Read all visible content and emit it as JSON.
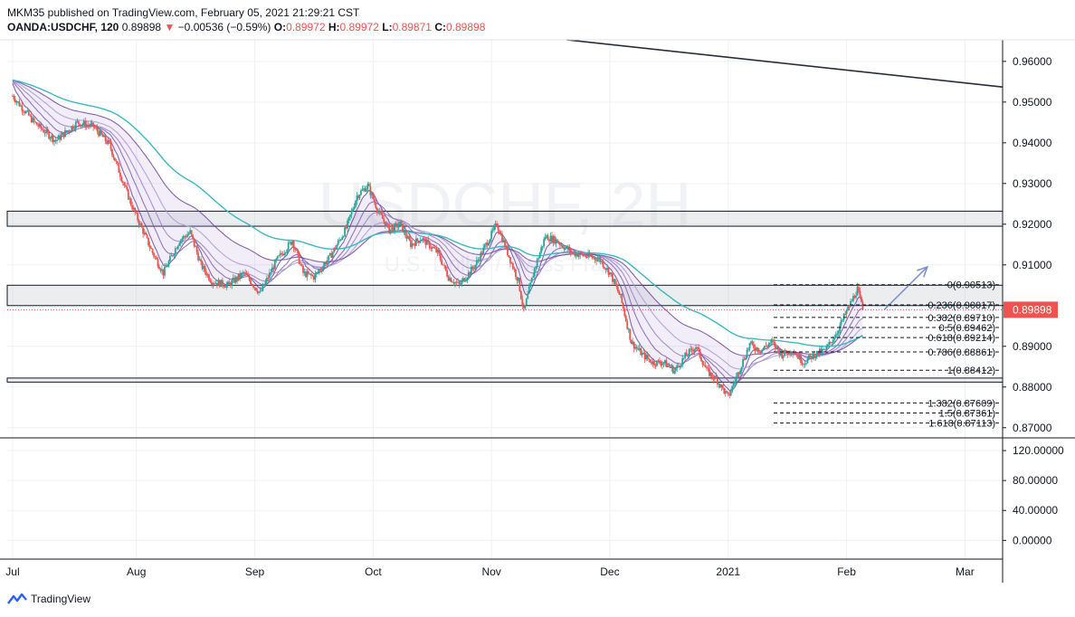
{
  "header": {
    "line1": "MKM35 published on TradingView.com, February 05, 2021 21:29:21 CST",
    "symbol": "OANDA:USDCHF, 120",
    "last": "0.89898",
    "arrow": "▼",
    "change": "−0.00536 (−0.59%)",
    "o_label": "O:",
    "o": "0.89972",
    "h_label": "H:",
    "h": "0.89972",
    "l_label": "L:",
    "l": "0.89871",
    "c_label": "C:",
    "c": "0.89898"
  },
  "watermark": "USDCHF, 2H",
  "watermark_sub": "U.S. Dollar / Swiss Franc",
  "footer": {
    "brand": "TradingView",
    "icon": "tradingview-logo-icon"
  },
  "colors": {
    "up": "#26a69a",
    "down": "#ef5350",
    "ema_slow": "#3cb8c0",
    "ema_fast": "#6a3d9a",
    "price_tag": "#ef5350",
    "arrow": "#7b93d6"
  },
  "chart_data": {
    "type": "candlestick",
    "x_labels": [
      "Jul",
      "Aug",
      "Sep",
      "Oct",
      "Nov",
      "Dec",
      "2021",
      "Feb",
      "Mar"
    ],
    "y_ticks": [
      "0.96000",
      "0.95000",
      "0.94000",
      "0.93000",
      "0.92000",
      "0.91000",
      "0.90000",
      "0.89000",
      "0.88000",
      "0.87000"
    ],
    "ylim": [
      0.8675,
      0.9653
    ],
    "price_label": "0.89898",
    "price_points": [
      [
        0,
        0.9515
      ],
      [
        4,
        0.945
      ],
      [
        8,
        0.9405
      ],
      [
        12,
        0.945
      ],
      [
        15,
        0.944
      ],
      [
        18,
        0.9395
      ],
      [
        22,
        0.925
      ],
      [
        26,
        0.913
      ],
      [
        28,
        0.908
      ],
      [
        31,
        0.916
      ],
      [
        33,
        0.918
      ],
      [
        35,
        0.91
      ],
      [
        37,
        0.906
      ],
      [
        40,
        0.905
      ],
      [
        43,
        0.908
      ],
      [
        46,
        0.903
      ],
      [
        49,
        0.911
      ],
      [
        52,
        0.916
      ],
      [
        54,
        0.908
      ],
      [
        56,
        0.907
      ],
      [
        59,
        0.912
      ],
      [
        62,
        0.919
      ],
      [
        64,
        0.927
      ],
      [
        66,
        0.9295
      ],
      [
        68,
        0.923
      ],
      [
        70,
        0.9185
      ],
      [
        72,
        0.92
      ],
      [
        74,
        0.915
      ],
      [
        76,
        0.9165
      ],
      [
        79,
        0.913
      ],
      [
        81,
        0.907
      ],
      [
        83,
        0.905
      ],
      [
        86,
        0.91
      ],
      [
        88,
        0.915
      ],
      [
        90,
        0.92
      ],
      [
        92,
        0.913
      ],
      [
        94,
        0.906
      ],
      [
        95,
        0.8985
      ],
      [
        97,
        0.909
      ],
      [
        99,
        0.917
      ],
      [
        101,
        0.916
      ],
      [
        104,
        0.913
      ],
      [
        107,
        0.912
      ],
      [
        109,
        0.9115
      ],
      [
        111,
        0.908
      ],
      [
        113,
        0.902
      ],
      [
        115,
        0.891
      ],
      [
        117,
        0.888
      ],
      [
        119,
        0.886
      ],
      [
        121,
        0.886
      ],
      [
        123,
        0.884
      ],
      [
        125,
        0.8875
      ],
      [
        127,
        0.89
      ],
      [
        129,
        0.884
      ],
      [
        131,
        0.8815
      ],
      [
        133,
        0.8775
      ],
      [
        135,
        0.884
      ],
      [
        137,
        0.8905
      ],
      [
        139,
        0.889
      ],
      [
        141,
        0.891
      ],
      [
        143,
        0.888
      ],
      [
        145,
        0.889
      ],
      [
        147,
        0.886
      ],
      [
        149,
        0.888
      ],
      [
        151,
        0.889
      ],
      [
        153,
        0.893
      ],
      [
        155,
        0.8985
      ],
      [
        157,
        0.904
      ],
      [
        158,
        0.899
      ]
    ],
    "x_scale": {
      "Jul": 0,
      "Aug": 23,
      "Sep": 45,
      "Oct": 67,
      "Nov": 89,
      "Dec": 111,
      "2021": 133,
      "Feb": 155,
      "Mar": 177,
      "range": [
        -1,
        184
      ]
    },
    "resistance_zones": [
      [
        0.9195,
        0.9232
      ],
      [
        0.9,
        0.905
      ],
      [
        0.8812,
        0.8822
      ]
    ],
    "trendline": [
      [
        103,
        0.9653
      ],
      [
        184,
        0.9537
      ]
    ],
    "fibonacci": [
      {
        "label": "0(0.90513)",
        "value": 0.90513
      },
      {
        "label": "0.236(0.90017)",
        "value": 0.90017
      },
      {
        "label": "0.382(0.89710)",
        "value": 0.8971
      },
      {
        "label": "0.5(0.89462)",
        "value": 0.89462
      },
      {
        "label": "0.618(0.89214)",
        "value": 0.89214
      },
      {
        "label": "0.786(0.88861)",
        "value": 0.88861
      },
      {
        "label": "1(0.88412)",
        "value": 0.88412
      },
      {
        "label": "1.382(0.87609)",
        "value": 0.87609
      },
      {
        "label": "1.5(0.87361)",
        "value": 0.87361
      },
      {
        "label": "1.618(0.87113)",
        "value": 0.87113
      }
    ],
    "forecast_arrow": [
      [
        162,
        0.899
      ],
      [
        170,
        0.9095
      ]
    ],
    "oscillator": {
      "y_ticks": [
        "120.00000",
        "80.00000",
        "40.00000",
        "0.00000"
      ],
      "ylim": [
        -25,
        137
      ]
    }
  }
}
